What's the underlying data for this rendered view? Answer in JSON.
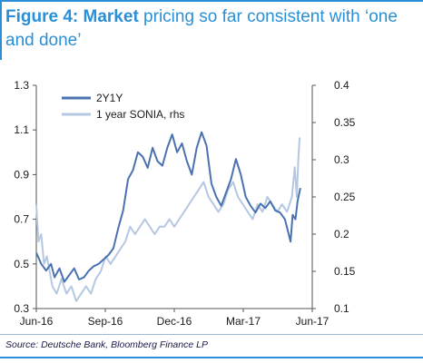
{
  "figure": {
    "title_lead": "Figure 4: ",
    "title_key": "Market",
    "title_rest": " pricing so far consistent with ‘one and done’",
    "source": "Source: Deutsche Bank, Bloomberg Finance LP"
  },
  "colors": {
    "series_2y1y": "#4a72b0",
    "series_sonia": "#b4c8e2",
    "accent": "#2a8fd6"
  },
  "chart_data": {
    "type": "line",
    "x_tick_labels": [
      "Jun-16",
      "Sep-16",
      "Dec-16",
      "Mar-17",
      "Jun-17"
    ],
    "x_range": [
      "2016-06-01",
      "2017-06-30"
    ],
    "y_left": {
      "ticks": [
        "0.3",
        "0.5",
        "0.7",
        "0.9",
        "1.1",
        "1.3"
      ],
      "range": [
        0.3,
        1.3
      ]
    },
    "y_right": {
      "ticks": [
        "0.1",
        "0.15",
        "0.2",
        "0.25",
        "0.3",
        "0.35",
        "0.4"
      ],
      "range": [
        0.1,
        0.4
      ]
    },
    "grid": false,
    "legend_position": "top-left",
    "series": [
      {
        "name": "2Y1Y",
        "axis": "left",
        "points": [
          [
            "2016-06-01",
            0.55
          ],
          [
            "2016-06-08",
            0.5
          ],
          [
            "2016-06-15",
            0.47
          ],
          [
            "2016-06-22",
            0.5
          ],
          [
            "2016-06-27",
            0.44
          ],
          [
            "2016-07-04",
            0.48
          ],
          [
            "2016-07-11",
            0.42
          ],
          [
            "2016-07-18",
            0.45
          ],
          [
            "2016-07-25",
            0.48
          ],
          [
            "2016-08-01",
            0.43
          ],
          [
            "2016-08-08",
            0.44
          ],
          [
            "2016-08-15",
            0.47
          ],
          [
            "2016-08-22",
            0.49
          ],
          [
            "2016-08-29",
            0.5
          ],
          [
            "2016-09-05",
            0.52
          ],
          [
            "2016-09-12",
            0.54
          ],
          [
            "2016-09-19",
            0.57
          ],
          [
            "2016-09-26",
            0.66
          ],
          [
            "2016-10-03",
            0.74
          ],
          [
            "2016-10-10",
            0.88
          ],
          [
            "2016-10-17",
            0.92
          ],
          [
            "2016-10-24",
            1.0
          ],
          [
            "2016-10-31",
            0.98
          ],
          [
            "2016-11-07",
            0.93
          ],
          [
            "2016-11-14",
            1.02
          ],
          [
            "2016-11-21",
            0.96
          ],
          [
            "2016-11-28",
            0.94
          ],
          [
            "2016-12-05",
            1.02
          ],
          [
            "2016-12-12",
            1.08
          ],
          [
            "2016-12-19",
            1.0
          ],
          [
            "2016-12-26",
            1.04
          ],
          [
            "2017-01-02",
            0.96
          ],
          [
            "2017-01-09",
            0.9
          ],
          [
            "2017-01-16",
            1.02
          ],
          [
            "2017-01-23",
            1.09
          ],
          [
            "2017-01-30",
            1.03
          ],
          [
            "2017-02-06",
            0.86
          ],
          [
            "2017-02-13",
            0.8
          ],
          [
            "2017-02-20",
            0.76
          ],
          [
            "2017-02-27",
            0.82
          ],
          [
            "2017-03-06",
            0.88
          ],
          [
            "2017-03-13",
            0.97
          ],
          [
            "2017-03-20",
            0.9
          ],
          [
            "2017-03-27",
            0.8
          ],
          [
            "2017-04-03",
            0.76
          ],
          [
            "2017-04-10",
            0.73
          ],
          [
            "2017-04-17",
            0.77
          ],
          [
            "2017-04-24",
            0.75
          ],
          [
            "2017-05-01",
            0.78
          ],
          [
            "2017-05-08",
            0.74
          ],
          [
            "2017-05-15",
            0.73
          ],
          [
            "2017-05-22",
            0.7
          ],
          [
            "2017-05-26",
            0.65
          ],
          [
            "2017-05-30",
            0.6
          ],
          [
            "2017-06-02",
            0.72
          ],
          [
            "2017-06-06",
            0.7
          ],
          [
            "2017-06-09",
            0.78
          ],
          [
            "2017-06-13",
            0.84
          ]
        ]
      },
      {
        "name": "1 year SONIA, rhs",
        "axis": "right",
        "points": [
          [
            "2016-06-01",
            0.24
          ],
          [
            "2016-06-04",
            0.19
          ],
          [
            "2016-06-08",
            0.2
          ],
          [
            "2016-06-12",
            0.16
          ],
          [
            "2016-06-16",
            0.17
          ],
          [
            "2016-06-20",
            0.15
          ],
          [
            "2016-06-24",
            0.13
          ],
          [
            "2016-06-30",
            0.12
          ],
          [
            "2016-07-07",
            0.14
          ],
          [
            "2016-07-14",
            0.12
          ],
          [
            "2016-07-21",
            0.13
          ],
          [
            "2016-07-28",
            0.11
          ],
          [
            "2016-08-04",
            0.12
          ],
          [
            "2016-08-11",
            0.13
          ],
          [
            "2016-08-18",
            0.12
          ],
          [
            "2016-08-25",
            0.14
          ],
          [
            "2016-09-01",
            0.15
          ],
          [
            "2016-09-08",
            0.17
          ],
          [
            "2016-09-15",
            0.16
          ],
          [
            "2016-09-22",
            0.17
          ],
          [
            "2016-09-29",
            0.18
          ],
          [
            "2016-10-06",
            0.19
          ],
          [
            "2016-10-13",
            0.21
          ],
          [
            "2016-10-20",
            0.2
          ],
          [
            "2016-10-27",
            0.21
          ],
          [
            "2016-11-03",
            0.22
          ],
          [
            "2016-11-10",
            0.21
          ],
          [
            "2016-11-17",
            0.2
          ],
          [
            "2016-11-24",
            0.21
          ],
          [
            "2016-12-01",
            0.21
          ],
          [
            "2016-12-08",
            0.22
          ],
          [
            "2016-12-15",
            0.21
          ],
          [
            "2016-12-22",
            0.22
          ],
          [
            "2016-12-29",
            0.23
          ],
          [
            "2017-01-05",
            0.24
          ],
          [
            "2017-01-12",
            0.25
          ],
          [
            "2017-01-19",
            0.26
          ],
          [
            "2017-01-26",
            0.27
          ],
          [
            "2017-02-02",
            0.25
          ],
          [
            "2017-02-09",
            0.24
          ],
          [
            "2017-02-16",
            0.23
          ],
          [
            "2017-02-23",
            0.24
          ],
          [
            "2017-03-02",
            0.26
          ],
          [
            "2017-03-09",
            0.27
          ],
          [
            "2017-03-16",
            0.25
          ],
          [
            "2017-03-23",
            0.24
          ],
          [
            "2017-03-30",
            0.23
          ],
          [
            "2017-04-06",
            0.22
          ],
          [
            "2017-04-13",
            0.24
          ],
          [
            "2017-04-20",
            0.23
          ],
          [
            "2017-04-27",
            0.25
          ],
          [
            "2017-05-04",
            0.24
          ],
          [
            "2017-05-11",
            0.23
          ],
          [
            "2017-05-18",
            0.24
          ],
          [
            "2017-05-25",
            0.23
          ],
          [
            "2017-06-01",
            0.25
          ],
          [
            "2017-06-05",
            0.29
          ],
          [
            "2017-06-08",
            0.25
          ],
          [
            "2017-06-10",
            0.3
          ],
          [
            "2017-06-12",
            0.33
          ]
        ]
      }
    ]
  }
}
